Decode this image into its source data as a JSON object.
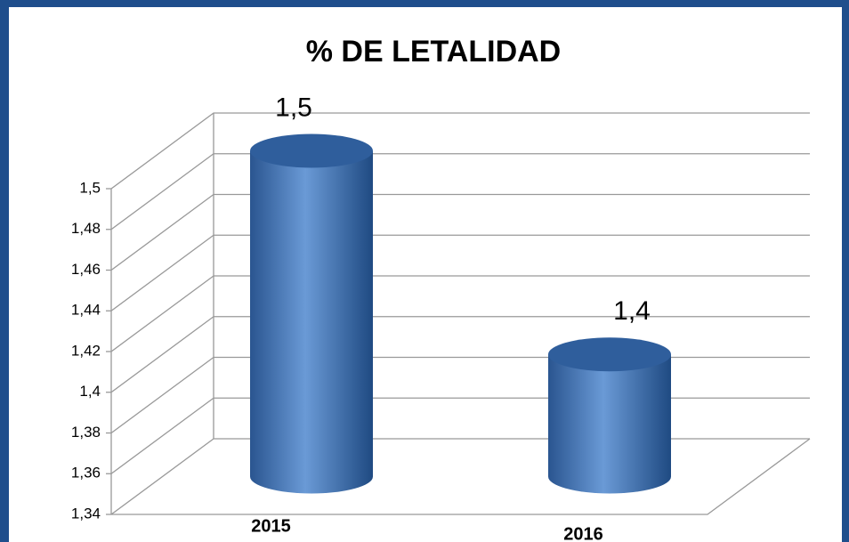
{
  "chart_data": {
    "type": "bar3d",
    "title": "% DE LETALIDAD",
    "categories": [
      "2015",
      "2016"
    ],
    "values": [
      1.5,
      1.4
    ],
    "value_labels": [
      "1,5",
      "1,4"
    ],
    "color": "#4a7ebb",
    "ylim": [
      1.34,
      1.5
    ],
    "yticks": [
      {
        "value": 1.34,
        "label": "1,34"
      },
      {
        "value": 1.36,
        "label": "1,36"
      },
      {
        "value": 1.38,
        "label": "1,38"
      },
      {
        "value": 1.4,
        "label": "1,4"
      },
      {
        "value": 1.42,
        "label": "1,42"
      },
      {
        "value": 1.44,
        "label": "1,44"
      },
      {
        "value": 1.46,
        "label": "1,46"
      },
      {
        "value": 1.48,
        "label": "1,48"
      },
      {
        "value": 1.5,
        "label": "1,5"
      }
    ],
    "grid": true
  }
}
